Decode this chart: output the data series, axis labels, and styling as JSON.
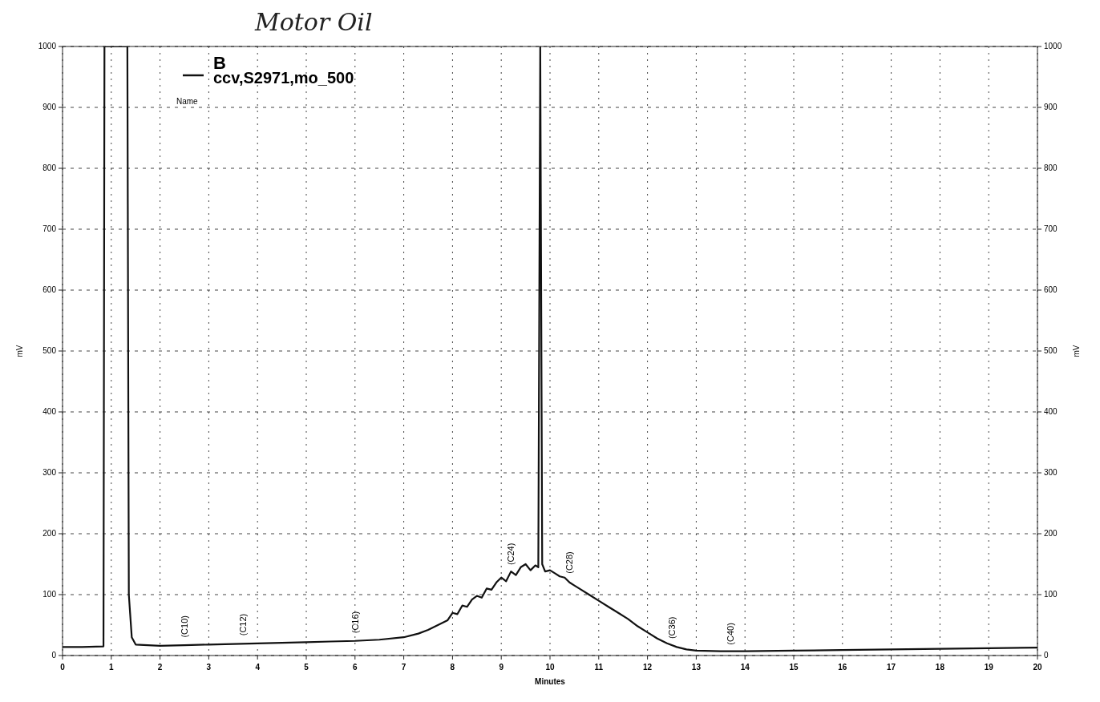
{
  "chart_data": {
    "type": "line",
    "title": "Motor Oil",
    "xlabel": "Minutes",
    "ylabel": "mV",
    "y2label": "mV",
    "legend_title": "B",
    "x": [
      0,
      0.4,
      0.84,
      0.86,
      1.33,
      1.36,
      1.42,
      1.5,
      2,
      2.5,
      3,
      3.5,
      4,
      4.5,
      5,
      5.5,
      6,
      6.5,
      7,
      7.3,
      7.5,
      7.7,
      7.9,
      8.0,
      8.1,
      8.2,
      8.3,
      8.4,
      8.5,
      8.6,
      8.7,
      8.8,
      8.9,
      9.0,
      9.1,
      9.2,
      9.3,
      9.4,
      9.5,
      9.6,
      9.7,
      9.76,
      9.8,
      9.84,
      9.9,
      10.0,
      10.1,
      10.2,
      10.3,
      10.4,
      10.5,
      10.6,
      10.8,
      11.0,
      11.2,
      11.4,
      11.6,
      11.8,
      12.0,
      12.2,
      12.4,
      12.6,
      12.8,
      13.0,
      13.5,
      14,
      15,
      16,
      17,
      18,
      19,
      20
    ],
    "series": [
      {
        "name": "ccv,S2971,mo_500",
        "color": "#111111",
        "values": [
          14,
          14,
          15,
          1000,
          1000,
          100,
          30,
          18,
          16,
          17,
          18,
          19,
          20,
          21,
          22,
          23,
          24,
          26,
          30,
          36,
          42,
          50,
          58,
          70,
          68,
          82,
          80,
          92,
          98,
          95,
          110,
          108,
          120,
          128,
          122,
          138,
          132,
          145,
          150,
          140,
          148,
          145,
          1000,
          150,
          138,
          140,
          135,
          130,
          128,
          120,
          115,
          110,
          100,
          90,
          80,
          70,
          60,
          48,
          38,
          28,
          20,
          14,
          10,
          8,
          7,
          7,
          8,
          9,
          10,
          11,
          12,
          13
        ]
      }
    ],
    "annotations": [
      "Name",
      {
        "text": "(C10)",
        "x": 2.5,
        "y": 19
      },
      {
        "text": "(C12)",
        "x": 3.7,
        "y": 22
      },
      {
        "text": "(C16)",
        "x": 6,
        "y": 26
      },
      {
        "text": "(C24)",
        "x": 9.2,
        "y": 138
      },
      {
        "text": "(C28)",
        "x": 10.4,
        "y": 124
      },
      {
        "text": "(C36)",
        "x": 12.5,
        "y": 17
      },
      {
        "text": "(C40)",
        "x": 13.7,
        "y": 7
      }
    ],
    "xlim": [
      0,
      20
    ],
    "xticks": [
      0,
      1,
      2,
      3,
      4,
      5,
      6,
      7,
      8,
      9,
      10,
      11,
      12,
      13,
      14,
      15,
      16,
      17,
      18,
      19,
      20
    ],
    "ylim": [
      0,
      1000
    ],
    "yticks": [
      0,
      100,
      200,
      300,
      400,
      500,
      600,
      700,
      800,
      900,
      1000
    ],
    "y2lim": [
      0,
      1000
    ],
    "y2ticks": [
      0,
      100,
      200,
      300,
      400,
      500,
      600,
      700,
      800,
      900,
      1000
    ],
    "grid": true,
    "legend": "top left",
    "line_style": "solid",
    "marker": "none"
  }
}
